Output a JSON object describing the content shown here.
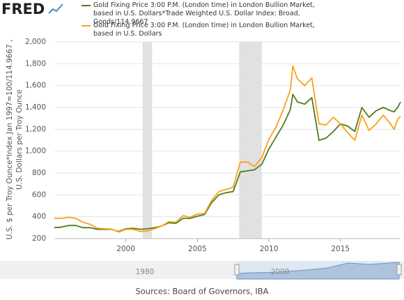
{
  "chart_data": {
    "type": "line",
    "logo": "FRED",
    "ylabel": [
      "U.S. $ per Troy Ounce*Index Jan 1997=100/114.9667 ,",
      "U.S. Dollars per Troy Ounce"
    ],
    "source": "Sources: Board of Governors, IBA",
    "navigator_labels": [
      "1980",
      "2000"
    ],
    "x": [
      1995,
      1995.5,
      1996,
      1996.5,
      1997,
      1997.5,
      1998,
      1998.5,
      1999,
      1999.5,
      2000,
      2000.5,
      2001,
      2001.5,
      2002,
      2002.5,
      2003,
      2003.5,
      2004,
      2004.5,
      2005,
      2005.5,
      2006,
      2006.5,
      2007,
      2007.5,
      2008,
      2008.5,
      2009,
      2009.5,
      2010,
      2010.5,
      2011,
      2011.5,
      2011.67,
      2012,
      2012.5,
      2013,
      2013.5,
      2014,
      2014.5,
      2015,
      2015.5,
      2016,
      2016.5,
      2017,
      2017.5,
      2018,
      2018.5,
      2018.75,
      2019,
      2019.2
    ],
    "series": [
      {
        "name": "Gold Fixing Price 3:00 P.M. (London time) in London Bullion Market, based in U.S. Dollars*Trade Weighted U.S. Dollar Index: Broad, Goods/114.9667",
        "color": "#4e7d18",
        "values": [
          300,
          305,
          320,
          320,
          300,
          300,
          285,
          285,
          285,
          265,
          290,
          295,
          285,
          290,
          300,
          315,
          345,
          340,
          385,
          385,
          405,
          420,
          530,
          600,
          620,
          630,
          810,
          820,
          830,
          880,
          1020,
          1130,
          1240,
          1380,
          1520,
          1450,
          1430,
          1490,
          1100,
          1120,
          1180,
          1250,
          1230,
          1180,
          1400,
          1310,
          1370,
          1400,
          1370,
          1360,
          1400,
          1450
        ]
      },
      {
        "name": "Gold Fixing Price 3:00 P.M. (London time) in London Bullion Market, based in U.S. Dollars",
        "color": "#f9a21b",
        "values": [
          385,
          385,
          395,
          385,
          350,
          330,
          295,
          290,
          287,
          260,
          285,
          285,
          265,
          270,
          290,
          315,
          355,
          350,
          410,
          395,
          425,
          430,
          550,
          630,
          650,
          670,
          900,
          900,
          860,
          940,
          1110,
          1220,
          1380,
          1560,
          1780,
          1660,
          1600,
          1670,
          1250,
          1240,
          1310,
          1250,
          1170,
          1100,
          1330,
          1190,
          1250,
          1330,
          1250,
          1200,
          1290,
          1320
        ]
      }
    ],
    "shading": [
      [
        2001.17,
        2001.83
      ],
      [
        2007.92,
        2009.5
      ]
    ],
    "xlim": [
      1995,
      2019.2
    ],
    "xticks": [
      2000,
      2005,
      2010,
      2015
    ],
    "ylim": [
      200,
      2000
    ],
    "yticks": [
      200,
      400,
      600,
      800,
      {
        "value": 1000,
        "label": "1,000"
      },
      {
        "value": 1200,
        "label": "1,200"
      },
      {
        "value": 1400,
        "label": "1,400"
      },
      {
        "value": 1600,
        "label": "1,600"
      },
      {
        "value": 1800,
        "label": "1,800"
      },
      {
        "value": 2000,
        "label": "2,000"
      }
    ],
    "grid": true
  }
}
